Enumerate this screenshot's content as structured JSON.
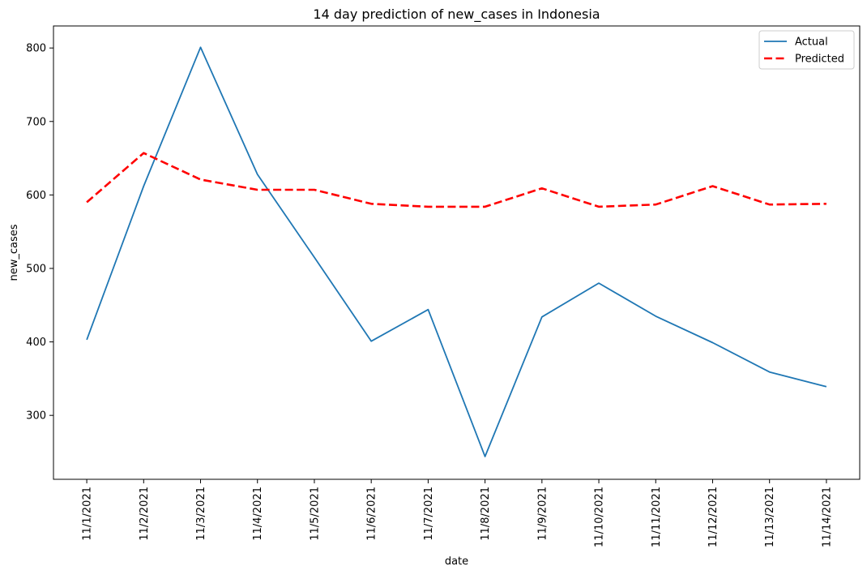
{
  "chart_data": {
    "type": "line",
    "title": "14 day prediction of new_cases in Indonesia",
    "xlabel": "date",
    "ylabel": "new_cases",
    "categories": [
      "11/1/2021",
      "11/2/2021",
      "11/3/2021",
      "11/4/2021",
      "11/5/2021",
      "11/6/2021",
      "11/7/2021",
      "11/8/2021",
      "11/9/2021",
      "11/10/2021",
      "11/11/2021",
      "11/12/2021",
      "11/13/2021",
      "11/14/2021"
    ],
    "yticks": [
      300,
      400,
      500,
      600,
      700,
      800
    ],
    "ylim": [
      213,
      830
    ],
    "grid": false,
    "legend_position": "top-right",
    "series": [
      {
        "name": "Actual",
        "color": "#1f77b4",
        "style": "solid",
        "values": [
          403,
          612,
          801,
          628,
          515,
          401,
          444,
          244,
          434,
          480,
          435,
          399,
          359,
          339
        ]
      },
      {
        "name": "Predicted",
        "color": "#ff0000",
        "style": "dashed",
        "values": [
          590,
          657,
          621,
          607,
          607,
          588,
          584,
          584,
          609,
          584,
          587,
          612,
          587,
          588
        ]
      }
    ]
  }
}
